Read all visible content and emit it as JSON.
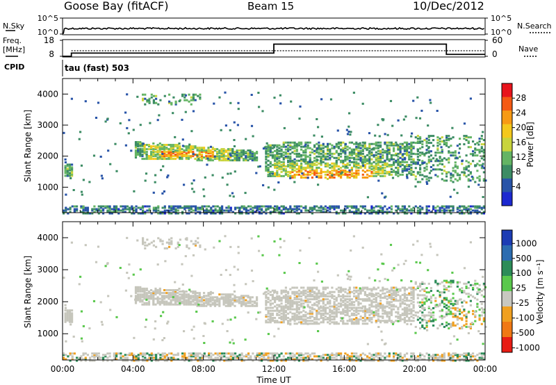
{
  "header": {
    "station": "Goose Bay (fitACF)",
    "beam": "Beam 15",
    "date": "10/Dec/2012"
  },
  "noise_panel": {
    "left_label": "N.Sky",
    "right_label": "N.Search",
    "left_ticks": [
      "10^5",
      "10^0"
    ],
    "right_ticks": [
      "10^5",
      "10^0"
    ]
  },
  "freq_panel": {
    "left_label_1": "Freq.",
    "left_label_2": "[MHz]",
    "left_ticks": [
      "18",
      "8"
    ],
    "right_label": "Nave",
    "right_ticks": [
      "60",
      "0"
    ]
  },
  "cpid_panel": {
    "label": "CPID",
    "text": "tau (fast) 503"
  },
  "power_panel": {
    "ylabel": "Slant Range [km]",
    "yticks": [
      "4000",
      "3000",
      "2000",
      "1000"
    ],
    "colorbar_label": "Power [dB]",
    "colorbar_ticks": [
      "28",
      "24",
      "20",
      "16",
      "12",
      "8",
      "4"
    ],
    "colorbar_colors": [
      "#e8141c",
      "#f45a14",
      "#f79a14",
      "#f4c81c",
      "#c8d43c",
      "#64b464",
      "#3c8c64",
      "#2854a8",
      "#1c28d0"
    ]
  },
  "velocity_panel": {
    "ylabel": "Slant Range [km]",
    "yticks": [
      "4000",
      "3000",
      "2000",
      "1000"
    ],
    "colorbar_label": "Velocity [m s⁻¹]",
    "colorbar_ticks": [
      "1000",
      "500",
      "100",
      "25",
      "-25",
      "-100",
      "-500",
      "-1000"
    ],
    "colorbar_colors": [
      "#1c3cb4",
      "#2c6cb0",
      "#2c8c58",
      "#5ac84c",
      "#c8c8c0",
      "#f0a020",
      "#f07814",
      "#e81c14"
    ]
  },
  "xaxis": {
    "label": "Time UT",
    "ticks": [
      "00:00",
      "04:00",
      "08:00",
      "12:00",
      "16:00",
      "20:00",
      "00:00"
    ]
  },
  "chart_data": [
    {
      "type": "line",
      "title": "Goose Bay (fitACF)",
      "series": [
        {
          "name": "N.Sky",
          "x": [
            "00:00",
            "00:30",
            "04:00",
            "08:00",
            "12:00",
            "16:00",
            "20:00",
            "24:00"
          ],
          "values": [
            1,
            10000,
            10000,
            10000,
            10000,
            10000,
            10000,
            10000
          ]
        }
      ],
      "xlabel": "Time UT",
      "ylim": [
        1,
        100000
      ],
      "yscale": "log"
    },
    {
      "type": "line",
      "series": [
        {
          "name": "Freq. [MHz]",
          "x": [
            "00:00",
            "00:30",
            "12:00",
            "21:48",
            "24:00"
          ],
          "values": [
            8,
            10,
            15.6,
            15.6,
            9.2
          ]
        },
        {
          "name": "Nave",
          "x": [
            "00:00",
            "00:30",
            "12:00",
            "21:48",
            "24:00"
          ],
          "values": [
            0,
            10,
            10,
            10,
            10
          ]
        }
      ],
      "ylim": [
        8,
        18
      ],
      "xlabel": "Time UT"
    },
    {
      "type": "heatmap",
      "title": "Power [dB]",
      "xlabel": "Time UT",
      "ylabel": "Slant Range [km]",
      "xlim": [
        0,
        24
      ],
      "ylim": [
        180,
        4500
      ],
      "zlim": [
        0,
        30
      ],
      "features": [
        {
          "t_start": 0.1,
          "t_end": 0.6,
          "range_start": 1400,
          "range_end": 1800,
          "power": 10
        },
        {
          "t_start": 4.1,
          "t_end": 11.0,
          "range_start": 1900,
          "range_end": 2500,
          "power": 14
        },
        {
          "t_start": 5.5,
          "t_end": 8.5,
          "range_start": 2000,
          "range_end": 2200,
          "power": 21
        },
        {
          "t_start": 4.5,
          "t_end": 7.8,
          "range_start": 3700,
          "range_end": 4050,
          "power": 6
        },
        {
          "t_start": 11.5,
          "t_end": 20.0,
          "range_start": 1300,
          "range_end": 2500,
          "power": 14
        },
        {
          "t_start": 13.0,
          "t_end": 17.5,
          "range_start": 1300,
          "range_end": 1600,
          "power": 24
        },
        {
          "t_start": 0.0,
          "t_end": 24.0,
          "range_start": 180,
          "range_end": 400,
          "power": 6
        }
      ]
    },
    {
      "type": "heatmap",
      "title": "Velocity [m s⁻¹]",
      "xlabel": "Time UT",
      "ylabel": "Slant Range [km]",
      "xlim": [
        0,
        24
      ],
      "ylim": [
        180,
        4500
      ],
      "zlim": [
        -1000,
        1000
      ],
      "features": [
        {
          "t_start": 4.1,
          "t_end": 11.0,
          "range_start": 1900,
          "range_end": 2500,
          "velocity": 0
        },
        {
          "t_start": 11.5,
          "t_end": 20.0,
          "range_start": 1300,
          "range_end": 2500,
          "velocity": 0
        },
        {
          "t_start": 20.5,
          "t_end": 21.5,
          "range_start": 1100,
          "range_end": 2000,
          "velocity": 100
        },
        {
          "t_start": 22.5,
          "t_end": 23.5,
          "range_start": 1400,
          "range_end": 1900,
          "velocity": -300
        }
      ]
    }
  ]
}
